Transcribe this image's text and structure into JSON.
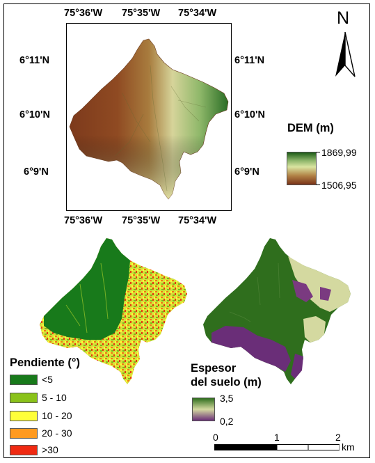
{
  "dem_map": {
    "top_ticks": [
      "75°36'W",
      "75°35'W",
      "75°34'W"
    ],
    "bottom_ticks": [
      "75°36'W",
      "75°35'W",
      "75°34'W"
    ],
    "left_ticks": [
      "6°11'N",
      "6°10'N",
      "6°9'N"
    ],
    "right_ticks": [
      "6°11'N",
      "6°10'N",
      "6°9'N"
    ],
    "north_label": "N"
  },
  "dem_legend": {
    "title": "DEM (m)",
    "max": "1869,99",
    "min": "1506,95",
    "colors": [
      "#1c5b16",
      "#d9e4a0",
      "#7a3318"
    ]
  },
  "slope_legend": {
    "title": "Pendiente (°)",
    "classes": [
      {
        "label": "<5",
        "color": "#187a1b"
      },
      {
        "label": "5 - 10",
        "color": "#8ac21a"
      },
      {
        "label": "10 - 20",
        "color": "#ffff3a"
      },
      {
        "label": "20 - 30",
        "color": "#ff9a20"
      },
      {
        "label": ">30",
        "color": "#f02a12"
      }
    ]
  },
  "soil_legend": {
    "title_line1": "Espesor",
    "title_line2": "del suelo (m)",
    "max": "3,5",
    "min": "0,2",
    "colors": [
      "#2f6e1d",
      "#d4d9a0",
      "#6a2e78"
    ]
  },
  "scale_bar": {
    "labels": [
      "0",
      "1",
      "2"
    ],
    "unit": "km"
  }
}
